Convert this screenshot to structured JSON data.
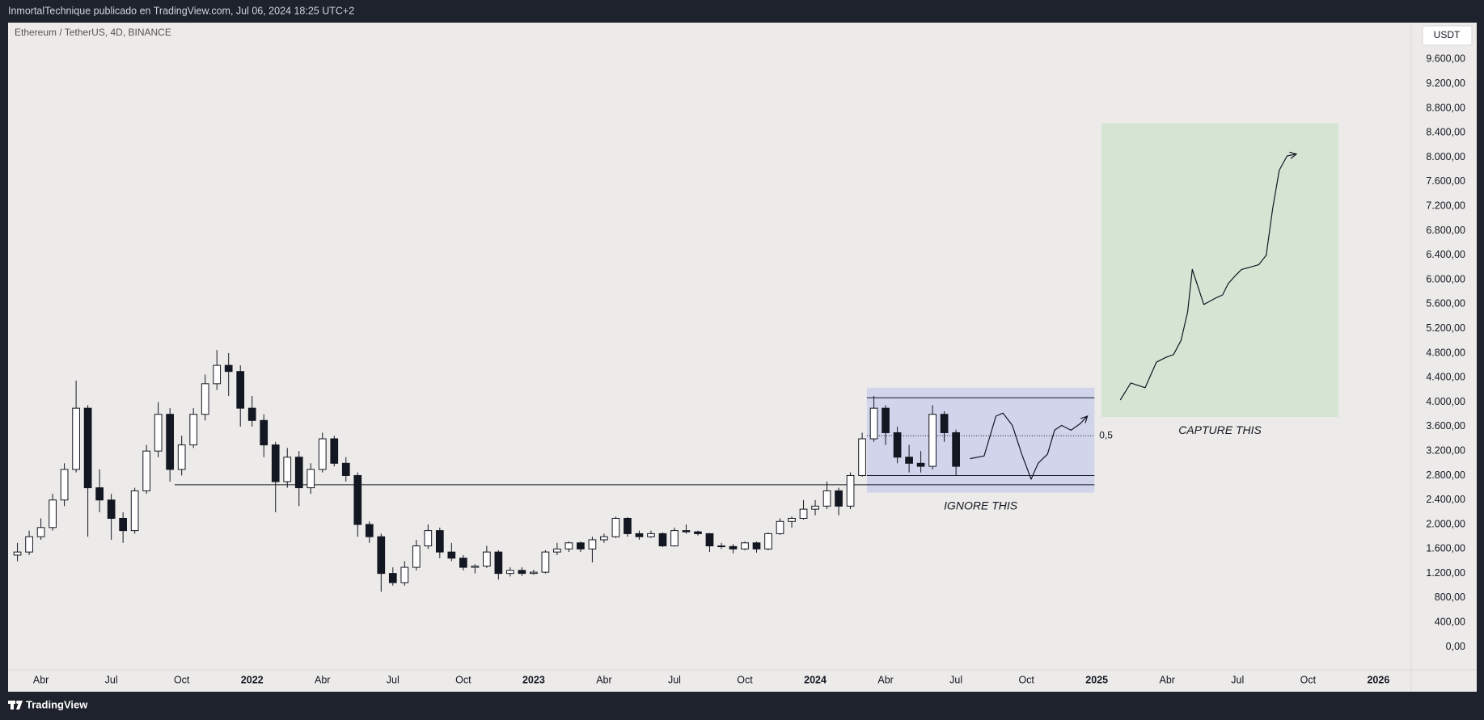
{
  "header": {
    "title": "InmortalTechnique publicado en TradingView.com, Jul 06, 2024 18:25 UTC+2"
  },
  "footer": {
    "brand": "TradingView"
  },
  "chart_data": {
    "type": "candlestick",
    "title": "Ethereum / TetherUS, 4D, BINANCE",
    "currency": "USDT",
    "up_color": "#ffffff",
    "down_color": "#131722",
    "wick_color": "#131722",
    "xlim": [
      1.67,
      61.4
    ],
    "xticks": [
      {
        "value": 3,
        "label": "Abr"
      },
      {
        "value": 6,
        "label": "Jul"
      },
      {
        "value": 9,
        "label": "Oct"
      },
      {
        "value": 12,
        "label": "2022"
      },
      {
        "value": 15,
        "label": "Abr"
      },
      {
        "value": 18,
        "label": "Jul"
      },
      {
        "value": 21,
        "label": "Oct"
      },
      {
        "value": 24,
        "label": "2023"
      },
      {
        "value": 27,
        "label": "Abr"
      },
      {
        "value": 30,
        "label": "Jul"
      },
      {
        "value": 33,
        "label": "Oct"
      },
      {
        "value": 36,
        "label": "2024"
      },
      {
        "value": 39,
        "label": "Abr"
      },
      {
        "value": 42,
        "label": "Jul"
      },
      {
        "value": 45,
        "label": "Oct"
      },
      {
        "value": 48,
        "label": "2025"
      },
      {
        "value": 51,
        "label": "Abr"
      },
      {
        "value": 54,
        "label": "Jul"
      },
      {
        "value": 57,
        "label": "Oct"
      },
      {
        "value": 60,
        "label": "2026"
      }
    ],
    "ylim": [
      -376,
      10200
    ],
    "yticks": [
      {
        "value": 0,
        "label": "0,00"
      },
      {
        "value": 400,
        "label": "400,00"
      },
      {
        "value": 800,
        "label": "800,00"
      },
      {
        "value": 1200,
        "label": "1.200,00"
      },
      {
        "value": 1600,
        "label": "1.600,00"
      },
      {
        "value": 2000,
        "label": "2.000,00"
      },
      {
        "value": 2400,
        "label": "2.400,00"
      },
      {
        "value": 2800,
        "label": "2.800,00"
      },
      {
        "value": 3200,
        "label": "3.200,00"
      },
      {
        "value": 3600,
        "label": "3.600,00"
      },
      {
        "value": 4000,
        "label": "4.000,00"
      },
      {
        "value": 4400,
        "label": "4.400,00"
      },
      {
        "value": 4800,
        "label": "4.800,00"
      },
      {
        "value": 5200,
        "label": "5.200,00"
      },
      {
        "value": 5600,
        "label": "5.600,00"
      },
      {
        "value": 6000,
        "label": "6.000,00"
      },
      {
        "value": 6400,
        "label": "6.400,00"
      },
      {
        "value": 6800,
        "label": "6.800,00"
      },
      {
        "value": 7200,
        "label": "7.200,00"
      },
      {
        "value": 7600,
        "label": "7.600,00"
      },
      {
        "value": 8000,
        "label": "8.000,00"
      },
      {
        "value": 8400,
        "label": "8.400,00"
      },
      {
        "value": 8800,
        "label": "8.800,00"
      },
      {
        "value": 9200,
        "label": "9.200,00"
      },
      {
        "value": 9600,
        "label": "9.600,00"
      }
    ],
    "x": [
      2,
      2.5,
      3,
      3.5,
      4,
      4.5,
      5,
      5.5,
      6,
      6.5,
      7,
      7.5,
      8,
      8.5,
      9,
      9.5,
      10,
      10.5,
      11,
      11.5,
      12,
      12.5,
      13,
      13.5,
      14,
      14.5,
      15,
      15.5,
      16,
      16.5,
      17,
      17.5,
      18,
      18.5,
      19,
      19.5,
      20,
      20.5,
      21,
      21.5,
      22,
      22.5,
      23,
      23.5,
      24,
      24.5,
      25,
      25.5,
      26,
      26.5,
      27,
      27.5,
      28,
      28.5,
      29,
      29.5,
      30,
      30.5,
      31,
      31.5,
      32,
      32.5,
      33,
      33.5,
      34,
      34.5,
      35,
      35.5,
      36,
      36.5,
      37,
      37.5,
      38,
      38.5,
      39,
      39.5,
      40,
      40.5,
      41,
      41.5,
      42
    ],
    "open": [
      1500,
      1550,
      1800,
      1950,
      2400,
      2900,
      3900,
      2600,
      2400,
      2100,
      1900,
      2550,
      3200,
      3800,
      2900,
      3300,
      3800,
      4300,
      4600,
      4500,
      3900,
      3700,
      3300,
      2700,
      3100,
      2600,
      2900,
      3400,
      3000,
      2800,
      2000,
      1800,
      1200,
      1050,
      1300,
      1650,
      1900,
      1550,
      1450,
      1300,
      1320,
      1550,
      1200,
      1250,
      1200,
      1220,
      1550,
      1600,
      1700,
      1600,
      1750,
      1800,
      2100,
      1850,
      1800,
      1850,
      1650,
      1900,
      1880,
      1850,
      1650,
      1640,
      1600,
      1700,
      1600,
      1850,
      2050,
      2100,
      2250,
      2300,
      2550,
      2300,
      2800,
      3400,
      3900,
      3500,
      3100,
      3000,
      2950,
      3800,
      3500
    ],
    "high": [
      1700,
      1900,
      2100,
      2500,
      3000,
      4350,
      3950,
      2900,
      2500,
      2200,
      2600,
      3300,
      4000,
      3900,
      3450,
      3900,
      4450,
      4850,
      4800,
      4600,
      4100,
      3800,
      3350,
      3250,
      3200,
      3000,
      3500,
      3450,
      3100,
      2850,
      2050,
      1850,
      1300,
      1400,
      1750,
      2000,
      1950,
      1700,
      1500,
      1350,
      1650,
      1580,
      1300,
      1300,
      1260,
      1580,
      1700,
      1720,
      1720,
      1800,
      1850,
      2130,
      2120,
      1900,
      1900,
      1870,
      1950,
      2000,
      1900,
      1860,
      1700,
      1680,
      1720,
      1720,
      1870,
      2100,
      2130,
      2400,
      2400,
      2700,
      2600,
      2850,
      3500,
      4100,
      3950,
      3600,
      3300,
      3200,
      3950,
      3850,
      3550
    ],
    "low": [
      1400,
      1500,
      1750,
      1900,
      2300,
      2850,
      1800,
      2200,
      1750,
      1700,
      1850,
      2500,
      3100,
      2700,
      2800,
      3250,
      3700,
      4200,
      4100,
      3600,
      3600,
      3100,
      2200,
      2600,
      2300,
      2500,
      2850,
      2950,
      2700,
      1800,
      1700,
      900,
      1000,
      1000,
      1250,
      1600,
      1450,
      1400,
      1250,
      1200,
      1290,
      1100,
      1150,
      1160,
      1180,
      1200,
      1500,
      1550,
      1550,
      1380,
      1700,
      1780,
      1800,
      1750,
      1780,
      1630,
      1640,
      1850,
      1820,
      1550,
      1600,
      1530,
      1580,
      1540,
      1580,
      1830,
      1950,
      2080,
      2150,
      2250,
      2150,
      2250,
      2780,
      3350,
      3300,
      3000,
      2850,
      2850,
      2900,
      3350,
      2800
    ],
    "close": [
      1550,
      1800,
      1950,
      2400,
      2900,
      3900,
      2600,
      2400,
      2100,
      1900,
      2550,
      3200,
      3800,
      2900,
      3300,
      3800,
      4300,
      4600,
      4500,
      3900,
      3700,
      3300,
      2700,
      3100,
      2600,
      2900,
      3400,
      3000,
      2800,
      2000,
      1800,
      1200,
      1050,
      1300,
      1650,
      1900,
      1550,
      1450,
      1300,
      1320,
      1550,
      1200,
      1250,
      1200,
      1220,
      1550,
      1600,
      1700,
      1600,
      1750,
      1800,
      2100,
      1850,
      1800,
      1850,
      1650,
      1900,
      1880,
      1850,
      1650,
      1640,
      1600,
      1700,
      1600,
      1850,
      2050,
      2100,
      2250,
      2300,
      2550,
      2300,
      2800,
      3400,
      3900,
      3500,
      3100,
      3000,
      2950,
      3800,
      3500,
      2950
    ],
    "support": {
      "x": [
        8.7,
        47.9
      ],
      "y": 2650
    },
    "ignore_zone": {
      "label": "IGNORE THIS",
      "color": "#d2d4ec",
      "x": [
        38.2,
        47.9
      ],
      "y": [
        2520,
        4235
      ],
      "levels": [
        4070,
        2800
      ],
      "mid_level": 3450,
      "mid_label": "0,5",
      "path": {
        "x": [
          42.6,
          43.2,
          43.7,
          44.0,
          44.4,
          44.8,
          45.2,
          45.5,
          45.9,
          46.2,
          46.5,
          46.9,
          47.3,
          47.6
        ],
        "y": [
          3075,
          3120,
          3770,
          3820,
          3620,
          3150,
          2740,
          3000,
          3150,
          3540,
          3620,
          3540,
          3650,
          3770
        ]
      }
    },
    "capture_zone": {
      "label": "CAPTURE THIS",
      "color": "#d6e4d4",
      "x": [
        48.2,
        58.3
      ],
      "y": [
        3755,
        8560
      ],
      "path": {
        "x": [
          49.0,
          49.45,
          50.06,
          50.54,
          50.94,
          51.27,
          51.59,
          51.87,
          52.07,
          52.27,
          52.56,
          53.08,
          53.36,
          53.6,
          53.89,
          54.17,
          54.49,
          54.9,
          55.22,
          55.5,
          55.78,
          56.11,
          56.51
        ],
        "y": [
          4034,
          4312,
          4235,
          4652,
          4730,
          4776,
          5008,
          5471,
          6167,
          5935,
          5595,
          5703,
          5750,
          5935,
          6059,
          6167,
          6198,
          6244,
          6399,
          7172,
          7790,
          8022,
          8053
        ]
      }
    }
  }
}
